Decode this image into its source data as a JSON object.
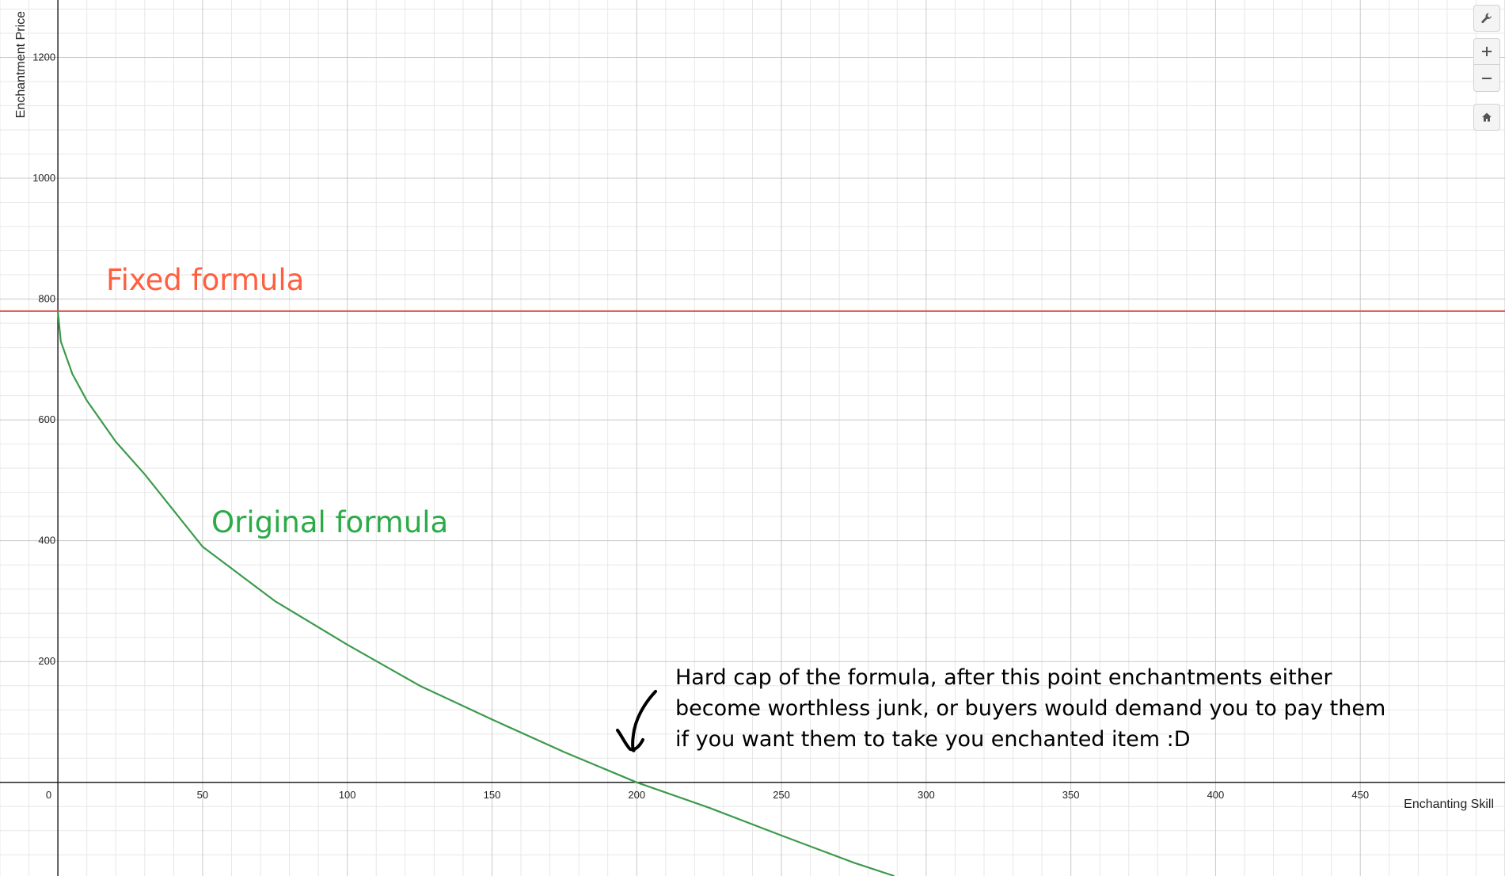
{
  "controls": {
    "settings_icon": "wrench-icon",
    "zoom_in_icon": "plus-icon",
    "zoom_out_icon": "minus-icon",
    "home_icon": "home-icon"
  },
  "chart_data": {
    "type": "line",
    "xlabel": "Enchanting Skill",
    "ylabel": "Enchantment Price",
    "xlim": [
      -20,
      500
    ],
    "ylim": [
      -155,
      1295
    ],
    "grid": true,
    "x_ticks": [
      0,
      50,
      100,
      150,
      200,
      250,
      300,
      350,
      400,
      450
    ],
    "y_ticks": [
      200,
      400,
      600,
      800,
      1000,
      1200
    ],
    "series": [
      {
        "name": "Fixed formula",
        "color": "#d9534f",
        "label_color": "#ff5f3f",
        "x": [
          -20,
          500
        ],
        "y": [
          780,
          780
        ]
      },
      {
        "name": "Original formula",
        "color": "#3c9a4c",
        "label_color": "#2bab47",
        "x": [
          0,
          1,
          5,
          10,
          20,
          30,
          50,
          75,
          100,
          125,
          150,
          175,
          200,
          225,
          250,
          275,
          289
        ],
        "y": [
          780,
          730,
          676,
          632,
          564,
          510,
          390,
          300,
          228,
          160,
          104,
          50,
          0,
          -42,
          -88,
          -133,
          -155
        ]
      }
    ],
    "annotation": {
      "text_lines": [
        "Hard cap of the formula, after this point enchantments either",
        "become worthless junk, or buyers would demand you to pay them",
        "if you want them to take you enchanted item :D"
      ],
      "arrow_target": [
        200,
        0
      ]
    }
  }
}
